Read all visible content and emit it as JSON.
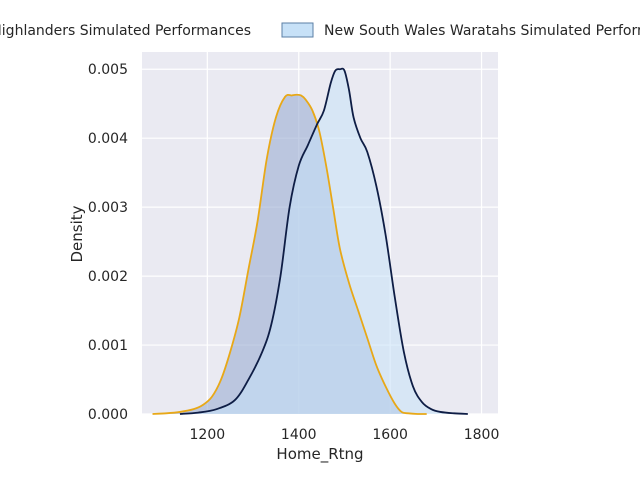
{
  "chart_data": {
    "type": "area",
    "xlabel": "Home_Rtng",
    "ylabel": "Density",
    "xlim": [
      1050,
      1830
    ],
    "ylim": [
      0,
      0.0052
    ],
    "x_ticks": [
      1200,
      1400,
      1600,
      1800
    ],
    "x_tick_labels": [
      "1200",
      "1400",
      "1600",
      "1800"
    ],
    "y_ticks": [
      0,
      0.001,
      0.002,
      0.003,
      0.004,
      0.005
    ],
    "y_tick_labels": [
      "0.000",
      "0.001",
      "0.002",
      "0.003",
      "0.004",
      "0.005"
    ],
    "grid": true,
    "legend_placement": "top-center",
    "series": [
      {
        "name": "Highlanders Simulated Performances",
        "line_color": "#e8a817",
        "fill_color": "#9eb0d4",
        "x": [
          1080,
          1110,
          1140,
          1170,
          1190,
          1210,
          1230,
          1250,
          1270,
          1290,
          1310,
          1330,
          1350,
          1370,
          1385,
          1395,
          1405,
          1415,
          1430,
          1445,
          1460,
          1475,
          1490,
          1510,
          1530,
          1550,
          1570,
          1590,
          1610,
          1625,
          1640,
          1660,
          1680
        ],
        "y": [
          0.0,
          1e-05,
          3e-05,
          7e-05,
          0.00013,
          0.00025,
          0.0005,
          0.0009,
          0.0014,
          0.0021,
          0.0028,
          0.0037,
          0.0043,
          0.0046,
          0.00462,
          0.00463,
          0.00462,
          0.00456,
          0.0044,
          0.0041,
          0.0036,
          0.003,
          0.0024,
          0.0019,
          0.0015,
          0.0011,
          0.0007,
          0.0004,
          0.00015,
          3e-05,
          1e-05,
          0.0,
          0.0
        ]
      },
      {
        "name": "New South Wales Waratahs Simulated Performances",
        "line_color": "#0e1d45",
        "fill_color": "#c7e1f7",
        "x": [
          1140,
          1180,
          1220,
          1260,
          1290,
          1320,
          1340,
          1360,
          1380,
          1400,
          1420,
          1440,
          1455,
          1470,
          1480,
          1490,
          1500,
          1510,
          1520,
          1535,
          1550,
          1570,
          1590,
          1610,
          1630,
          1650,
          1670,
          1690,
          1710,
          1740,
          1770
        ],
        "y": [
          0.0,
          2e-05,
          7e-05,
          0.0002,
          0.0005,
          0.0009,
          0.0013,
          0.002,
          0.003,
          0.0036,
          0.0039,
          0.0042,
          0.0044,
          0.0048,
          0.00498,
          0.005,
          0.00498,
          0.0047,
          0.0043,
          0.004,
          0.0038,
          0.0033,
          0.0026,
          0.0017,
          0.0009,
          0.0004,
          0.00017,
          7e-05,
          3e-05,
          1e-05,
          0.0
        ]
      }
    ]
  }
}
